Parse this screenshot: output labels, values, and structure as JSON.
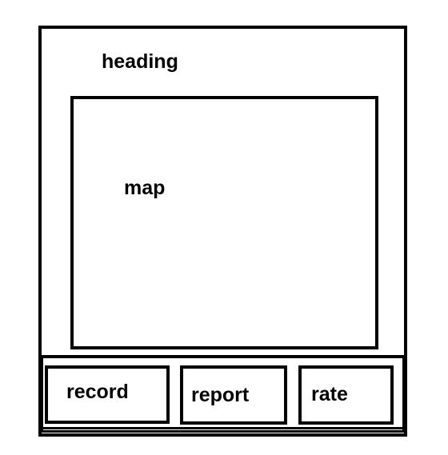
{
  "screen": {
    "heading": "heading",
    "map_label": "map"
  },
  "actions": {
    "record_label": "record",
    "report_label": "report",
    "rate_label": "rate"
  }
}
